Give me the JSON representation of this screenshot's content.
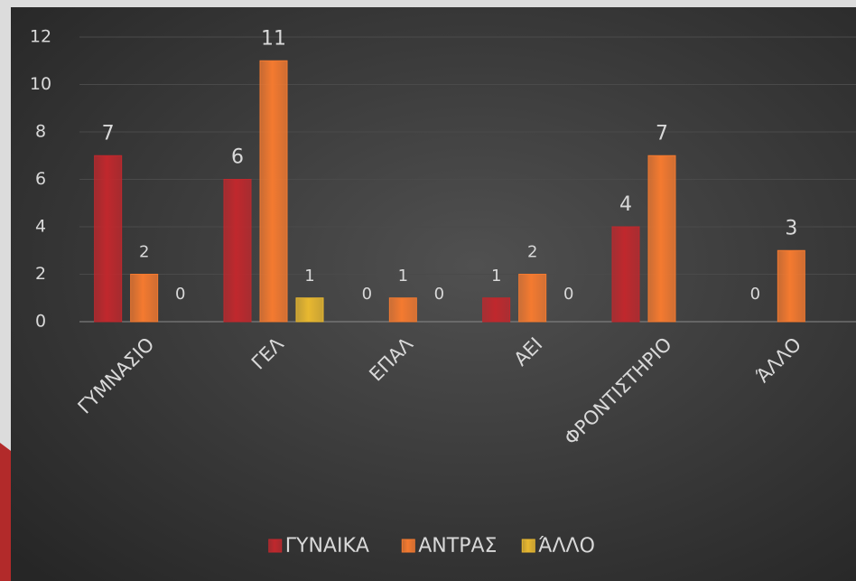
{
  "chart_data": {
    "type": "bar",
    "categories": [
      "ΓΥΜΝΑΣΙΟ",
      "ΓΕΛ",
      "ΕΠΑΛ",
      "ΑΕΙ",
      "ΦΡΟΝΤΙΣΤΗΡΙΟ",
      "ΆΛΛΟ"
    ],
    "series": [
      {
        "name": "ΓΥΝΑΙΚΑ",
        "color": "#c0282d",
        "values": [
          7,
          6,
          0,
          1,
          4,
          0
        ]
      },
      {
        "name": "ΑΝΤΡΑΣ",
        "color": "#f47a30",
        "values": [
          2,
          11,
          1,
          2,
          7,
          3
        ]
      },
      {
        "name": "ΆΛΛΟ",
        "color": "#e8b830",
        "values": [
          0,
          1,
          0,
          0,
          null,
          null
        ]
      }
    ],
    "ylim": [
      0,
      12
    ],
    "yticks": [
      0,
      2,
      4,
      6,
      8,
      10,
      12
    ],
    "grid": true,
    "legend": "bottom"
  }
}
